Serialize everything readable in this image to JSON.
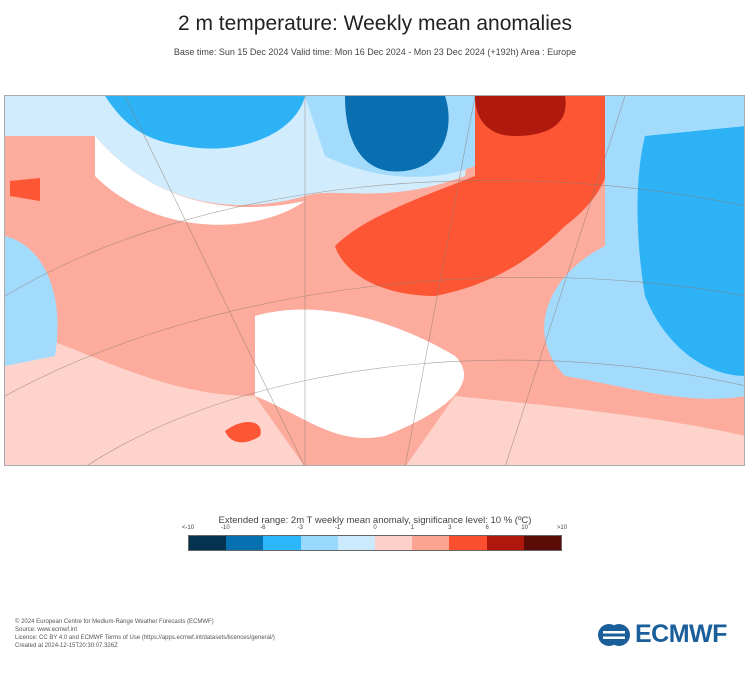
{
  "title": "2 m temperature: Weekly mean anomalies",
  "subtitle": "Base time: Sun 15 Dec 2024 Valid time: Mon 16 Dec 2024 - Mon 23 Dec 2024 (+192h) Area : Europe",
  "legend": {
    "title": "Extended range: 2m T weekly mean anomaly, significance level: 10 % (ºC)",
    "ticks": [
      "<-10",
      "-10",
      "-6",
      "-3",
      "-1",
      "0",
      "1",
      "3",
      "6",
      "10",
      ">10"
    ],
    "colors": [
      "#04334f",
      "#0571b0",
      "#2cb6fc",
      "#99d8fd",
      "#cbeafd",
      "#fdd1ca",
      "#fca492",
      "#fc4f30",
      "#b0180d",
      "#5a0c06"
    ]
  },
  "map_colors": {
    "base_warm": "#fcab9c",
    "light_warm": "#fdd3cc",
    "strong_warm": "#fc5634",
    "very_warm": "#b01a0e",
    "cold": "#2cb2f5",
    "light_cold": "#a3dbfd",
    "very_light_cold": "#d0ecfd",
    "very_cold": "#0a6fb0"
  },
  "footer": [
    "© 2024 European Centre for Medium-Range Weather Forecasts (ECMWF)",
    "Source: www.ecmwf.int",
    "Licence: CC BY 4.0 and ECMWF Terms of Use (https://apps.ecmwf.int/datasets/licences/general/)",
    "Created at 2024-12-15T20:30:07.326Z"
  ],
  "logo_text": "ECMWF"
}
